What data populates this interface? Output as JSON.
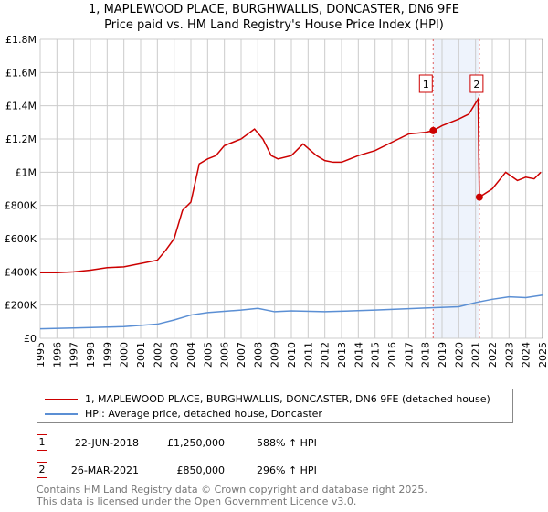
{
  "chart_data": {
    "type": "line",
    "title": "1, MAPLEWOOD PLACE, BURGHWALLIS, DONCASTER, DN6 9FE",
    "subtitle": "Price paid vs. HM Land Registry's House Price Index (HPI)",
    "xlim": [
      1995,
      2025
    ],
    "ylim": [
      0,
      1800000
    ],
    "x_ticks": [
      "1995",
      "1996",
      "1997",
      "1998",
      "1999",
      "2000",
      "2001",
      "2002",
      "2003",
      "2004",
      "2005",
      "2006",
      "2007",
      "2008",
      "2009",
      "2010",
      "2011",
      "2012",
      "2013",
      "2014",
      "2015",
      "2016",
      "2017",
      "2018",
      "2019",
      "2020",
      "2021",
      "2022",
      "2023",
      "2024",
      "2025"
    ],
    "y_ticks": [
      {
        "v": 0,
        "label": "£0"
      },
      {
        "v": 200000,
        "label": "£200K"
      },
      {
        "v": 400000,
        "label": "£400K"
      },
      {
        "v": 600000,
        "label": "£600K"
      },
      {
        "v": 800000,
        "label": "£800K"
      },
      {
        "v": 1000000,
        "label": "£1M"
      },
      {
        "v": 1200000,
        "label": "£1.2M"
      },
      {
        "v": 1400000,
        "label": "£1.4M"
      },
      {
        "v": 1600000,
        "label": "£1.6M"
      },
      {
        "v": 1800000,
        "label": "£1.8M"
      }
    ],
    "grid": true,
    "shaded_range": [
      2018.47,
      2021.23
    ],
    "series": [
      {
        "name": "1, MAPLEWOOD PLACE, BURGHWALLIS, DONCASTER, DN6 9FE (detached house)",
        "color": "#cc0000",
        "x": [
          1995,
          1996,
          1997,
          1998,
          1999,
          2000,
          2001,
          2002,
          2002.5,
          2003,
          2003.5,
          2004,
          2004.5,
          2005,
          2005.5,
          2006,
          2006.5,
          2007,
          2007.8,
          2008.3,
          2008.8,
          2009.2,
          2010,
          2010.7,
          2011.5,
          2012,
          2012.5,
          2013,
          2014,
          2015,
          2016,
          2017,
          2018,
          2018.47,
          2019,
          2020,
          2020.6,
          2021.15,
          2021.23,
          2022,
          2022.8,
          2023.5,
          2024,
          2024.5,
          2024.9
        ],
        "y": [
          395000,
          395000,
          400000,
          410000,
          425000,
          430000,
          450000,
          470000,
          530000,
          600000,
          770000,
          820000,
          1050000,
          1080000,
          1100000,
          1160000,
          1180000,
          1200000,
          1260000,
          1200000,
          1100000,
          1080000,
          1100000,
          1170000,
          1100000,
          1070000,
          1060000,
          1060000,
          1100000,
          1130000,
          1180000,
          1230000,
          1240000,
          1250000,
          1280000,
          1320000,
          1350000,
          1440000,
          850000,
          900000,
          1000000,
          950000,
          970000,
          960000,
          1000000
        ]
      },
      {
        "name": "HPI: Average price, detached house, Doncaster",
        "color": "#5b8fd4",
        "x": [
          1995,
          1997,
          2000,
          2002,
          2003,
          2004,
          2005,
          2007,
          2008,
          2009,
          2010,
          2012,
          2015,
          2018,
          2020,
          2021,
          2022,
          2023,
          2024,
          2025
        ],
        "y": [
          57000,
          62000,
          70000,
          85000,
          110000,
          140000,
          155000,
          170000,
          180000,
          160000,
          165000,
          160000,
          170000,
          182000,
          190000,
          215000,
          235000,
          250000,
          245000,
          260000
        ]
      }
    ],
    "sales": [
      {
        "id": "1",
        "x": 2018.47,
        "y": 1250000
      },
      {
        "id": "2",
        "x": 2021.23,
        "y": 850000
      }
    ],
    "legend_placement": "bottom"
  },
  "table": [
    {
      "id": "1",
      "date": "22-JUN-2018",
      "price": "£1,250,000",
      "hpi": "588% ↑ HPI"
    },
    {
      "id": "2",
      "date": "26-MAR-2021",
      "price": "£850,000",
      "hpi": "296% ↑ HPI"
    }
  ],
  "footer": [
    "Contains HM Land Registry data © Crown copyright and database right 2025.",
    "This data is licensed under the Open Government Licence v3.0."
  ]
}
